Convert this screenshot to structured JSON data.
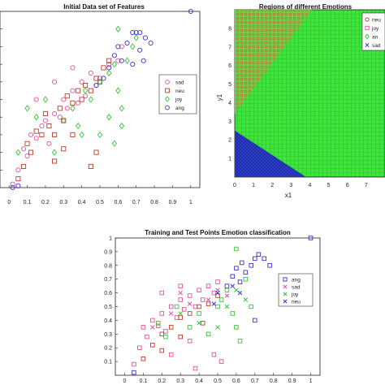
{
  "colors": {
    "sad": "#e0529b",
    "neu": "#c0392b",
    "joy": "#37c43a",
    "ang": "#3b32c8",
    "region_green": "#3fe53c",
    "region_green_dark": "#1faa21",
    "region_blue": "#2a3fd6",
    "region_red": "#c46a2e"
  },
  "chart_data": [
    {
      "id": "features",
      "type": "scatter",
      "title": "Initial Data set of Features",
      "xlabel": "",
      "ylabel": "",
      "xlim": [
        -0.05,
        1.05
      ],
      "ylim": [
        0,
        1
      ],
      "xticks": [
        "0",
        "0.1",
        "0.2",
        "0.3",
        "0.4",
        "0.5",
        "0.6",
        "0.7",
        "0.8",
        "0.9",
        "1"
      ],
      "legend_position": "right",
      "series": [
        {
          "name": "sad",
          "marker": "circle",
          "points": [
            [
              0.02,
              0.02
            ],
            [
              0.05,
              0.1
            ],
            [
              0.08,
              0.22
            ],
            [
              0.1,
              0.18
            ],
            [
              0.12,
              0.3
            ],
            [
              0.15,
              0.28
            ],
            [
              0.18,
              0.35
            ],
            [
              0.2,
              0.38
            ],
            [
              0.22,
              0.25
            ],
            [
              0.25,
              0.42
            ],
            [
              0.28,
              0.4
            ],
            [
              0.3,
              0.5
            ],
            [
              0.32,
              0.45
            ],
            [
              0.35,
              0.55
            ],
            [
              0.38,
              0.48
            ],
            [
              0.4,
              0.6
            ],
            [
              0.42,
              0.52
            ],
            [
              0.45,
              0.65
            ],
            [
              0.48,
              0.58
            ],
            [
              0.5,
              0.62
            ],
            [
              0.55,
              0.7
            ],
            [
              0.6,
              0.72
            ],
            [
              0.25,
              0.6
            ],
            [
              0.35,
              0.68
            ],
            [
              0.15,
              0.5
            ],
            [
              0.62,
              0.8
            ]
          ]
        },
        {
          "name": "neu",
          "marker": "square",
          "points": [
            [
              0.05,
              0.05
            ],
            [
              0.08,
              0.12
            ],
            [
              0.1,
              0.25
            ],
            [
              0.12,
              0.2
            ],
            [
              0.15,
              0.32
            ],
            [
              0.18,
              0.3
            ],
            [
              0.2,
              0.42
            ],
            [
              0.22,
              0.35
            ],
            [
              0.25,
              0.3
            ],
            [
              0.28,
              0.45
            ],
            [
              0.3,
              0.38
            ],
            [
              0.32,
              0.52
            ],
            [
              0.35,
              0.48
            ],
            [
              0.38,
              0.55
            ],
            [
              0.4,
              0.5
            ],
            [
              0.42,
              0.58
            ],
            [
              0.45,
              0.55
            ],
            [
              0.48,
              0.62
            ],
            [
              0.5,
              0.6
            ],
            [
              0.52,
              0.68
            ],
            [
              0.3,
              0.22
            ],
            [
              0.35,
              0.3
            ],
            [
              0.45,
              0.12
            ],
            [
              0.48,
              0.2
            ],
            [
              0.25,
              0.15
            ],
            [
              0.55,
              0.72
            ]
          ]
        },
        {
          "name": "joy",
          "marker": "diamond",
          "points": [
            [
              0.05,
              0.2
            ],
            [
              0.1,
              0.45
            ],
            [
              0.15,
              0.4
            ],
            [
              0.2,
              0.5
            ],
            [
              0.25,
              0.2
            ],
            [
              0.3,
              0.38
            ],
            [
              0.35,
              0.45
            ],
            [
              0.38,
              0.35
            ],
            [
              0.4,
              0.3
            ],
            [
              0.42,
              0.55
            ],
            [
              0.5,
              0.6
            ],
            [
              0.55,
              0.65
            ],
            [
              0.58,
              0.7
            ],
            [
              0.6,
              0.55
            ],
            [
              0.62,
              0.45
            ],
            [
              0.58,
              0.25
            ],
            [
              0.62,
              0.35
            ],
            [
              0.65,
              0.72
            ],
            [
              0.68,
              0.8
            ],
            [
              0.6,
              0.9
            ],
            [
              0.7,
              0.85
            ],
            [
              0.55,
              0.4
            ],
            [
              0.5,
              0.3
            ],
            [
              0.45,
              0.5
            ]
          ]
        },
        {
          "name": "ang",
          "marker": "circle",
          "points": [
            [
              0.02,
              0.0
            ],
            [
              0.05,
              0.01
            ],
            [
              0.48,
              0.58
            ],
            [
              0.52,
              0.62
            ],
            [
              0.55,
              0.68
            ],
            [
              0.58,
              0.75
            ],
            [
              0.6,
              0.8
            ],
            [
              0.62,
              0.72
            ],
            [
              0.65,
              0.82
            ],
            [
              0.68,
              0.88
            ],
            [
              0.7,
              0.88
            ],
            [
              0.72,
              0.88
            ],
            [
              0.75,
              0.85
            ],
            [
              0.78,
              0.82
            ],
            [
              1.0,
              1.0
            ],
            [
              0.72,
              0.78
            ],
            [
              0.68,
              0.7
            ],
            [
              0.74,
              0.72
            ]
          ]
        }
      ]
    },
    {
      "id": "regions",
      "type": "heatmap",
      "title": "Regions of different Emotions",
      "xlabel": "x1",
      "ylabel": "y1",
      "xlim": [
        0,
        8
      ],
      "ylim": [
        0,
        9
      ],
      "xticks": [
        "0",
        "1",
        "2",
        "3",
        "4",
        "5",
        "6",
        "7"
      ],
      "yticks": [
        "1",
        "2",
        "3",
        "4",
        "5",
        "6",
        "7",
        "8"
      ],
      "legend_position": "top-right",
      "legend": [
        {
          "label": "neu",
          "marker": "circle"
        },
        {
          "label": "joy",
          "marker": "square"
        },
        {
          "label": "an",
          "marker": "diamond"
        },
        {
          "label": "sad",
          "marker": "x"
        }
      ],
      "regions": [
        {
          "name": "neu",
          "polygon": [
            [
              0,
              9
            ],
            [
              4.1,
              9
            ],
            [
              0,
              3.4
            ]
          ]
        },
        {
          "name": "sad",
          "polygon": [
            [
              0,
              0
            ],
            [
              0,
              2.5
            ],
            [
              3.8,
              0
            ]
          ]
        }
      ]
    },
    {
      "id": "train_test",
      "type": "scatter",
      "title": "Training and Test Points Emotion classification",
      "xlabel": "",
      "ylabel": "",
      "xlim": [
        -0.05,
        1.05
      ],
      "ylim": [
        0,
        1
      ],
      "xticks": [
        "0",
        "0.1",
        "0.2",
        "0.3",
        "0.4",
        "0.5",
        "0.6",
        "0.7",
        "0.8",
        "0.9",
        "1"
      ],
      "yticks": [
        "0.1",
        "0.2",
        "0.3",
        "0.4",
        "0.5",
        "0.6",
        "0.7",
        "0.8",
        "0.9",
        "1"
      ],
      "legend_position": "right",
      "legend": [
        {
          "label": "ang",
          "marker": "square",
          "color": "ang"
        },
        {
          "label": "sad",
          "marker": "x",
          "color": "sad"
        },
        {
          "label": "joy",
          "marker": "x",
          "color": "joy"
        },
        {
          "label": "neu",
          "marker": "x",
          "color": "ang"
        }
      ],
      "series": [
        {
          "name": "ang",
          "marker": "square",
          "color": "ang",
          "points": [
            [
              0.05,
              0.02
            ],
            [
              0.55,
              0.65
            ],
            [
              0.58,
              0.72
            ],
            [
              0.6,
              0.78
            ],
            [
              0.63,
              0.82
            ],
            [
              0.65,
              0.75
            ],
            [
              0.68,
              0.8
            ],
            [
              0.7,
              0.85
            ],
            [
              0.72,
              0.88
            ],
            [
              0.75,
              0.85
            ],
            [
              0.78,
              0.8
            ],
            [
              0.7,
              0.4
            ],
            [
              1.0,
              1.0
            ],
            [
              0.62,
              0.68
            ]
          ]
        },
        {
          "name": "sad",
          "marker": "square",
          "color": "sad",
          "points": [
            [
              0.05,
              0.08
            ],
            [
              0.08,
              0.2
            ],
            [
              0.1,
              0.35
            ],
            [
              0.12,
              0.28
            ],
            [
              0.15,
              0.4
            ],
            [
              0.18,
              0.36
            ],
            [
              0.2,
              0.45
            ],
            [
              0.22,
              0.32
            ],
            [
              0.25,
              0.5
            ],
            [
              0.28,
              0.42
            ],
            [
              0.3,
              0.55
            ],
            [
              0.32,
              0.48
            ],
            [
              0.35,
              0.58
            ],
            [
              0.38,
              0.5
            ],
            [
              0.4,
              0.62
            ],
            [
              0.42,
              0.55
            ],
            [
              0.45,
              0.65
            ],
            [
              0.48,
              0.6
            ],
            [
              0.5,
              0.68
            ],
            [
              0.2,
              0.6
            ],
            [
              0.3,
              0.65
            ],
            [
              0.25,
              0.15
            ],
            [
              0.35,
              0.25
            ],
            [
              0.38,
              0.05
            ],
            [
              0.48,
              0.15
            ],
            [
              0.52,
              0.1
            ]
          ]
        },
        {
          "name": "neu",
          "marker": "square",
          "color": "neu",
          "points": [
            [
              0.1,
              0.12
            ],
            [
              0.15,
              0.22
            ],
            [
              0.2,
              0.3
            ],
            [
              0.25,
              0.35
            ],
            [
              0.3,
              0.42
            ],
            [
              0.35,
              0.45
            ],
            [
              0.4,
              0.5
            ],
            [
              0.45,
              0.52
            ],
            [
              0.5,
              0.58
            ],
            [
              0.2,
              0.18
            ],
            [
              0.3,
              0.28
            ],
            [
              0.42,
              0.38
            ]
          ]
        },
        {
          "name": "joy",
          "marker": "square",
          "color": "joy",
          "points": [
            [
              0.18,
              0.38
            ],
            [
              0.22,
              0.28
            ],
            [
              0.28,
              0.5
            ],
            [
              0.35,
              0.35
            ],
            [
              0.4,
              0.45
            ],
            [
              0.45,
              0.3
            ],
            [
              0.5,
              0.5
            ],
            [
              0.52,
              0.55
            ],
            [
              0.55,
              0.62
            ],
            [
              0.58,
              0.45
            ],
            [
              0.6,
              0.35
            ],
            [
              0.62,
              0.25
            ],
            [
              0.6,
              0.92
            ],
            [
              0.65,
              0.7
            ],
            [
              0.68,
              0.5
            ]
          ]
        },
        {
          "name": "sad_x",
          "marker": "x",
          "color": "sad",
          "points": [
            [
              0.15,
              0.35
            ],
            [
              0.25,
              0.45
            ],
            [
              0.35,
              0.52
            ],
            [
              0.45,
              0.55
            ],
            [
              0.5,
              0.62
            ],
            [
              0.55,
              0.58
            ],
            [
              0.3,
              0.6
            ]
          ]
        },
        {
          "name": "joy_x",
          "marker": "x",
          "color": "joy",
          "points": [
            [
              0.3,
              0.45
            ],
            [
              0.4,
              0.38
            ],
            [
              0.55,
              0.5
            ],
            [
              0.6,
              0.62
            ],
            [
              0.5,
              0.35
            ],
            [
              0.65,
              0.55
            ]
          ]
        },
        {
          "name": "neu_x",
          "marker": "x",
          "color": "ang",
          "points": [
            [
              0.5,
              0.6
            ],
            [
              0.58,
              0.65
            ],
            [
              0.48,
              0.52
            ],
            [
              0.62,
              0.6
            ]
          ]
        }
      ]
    }
  ]
}
